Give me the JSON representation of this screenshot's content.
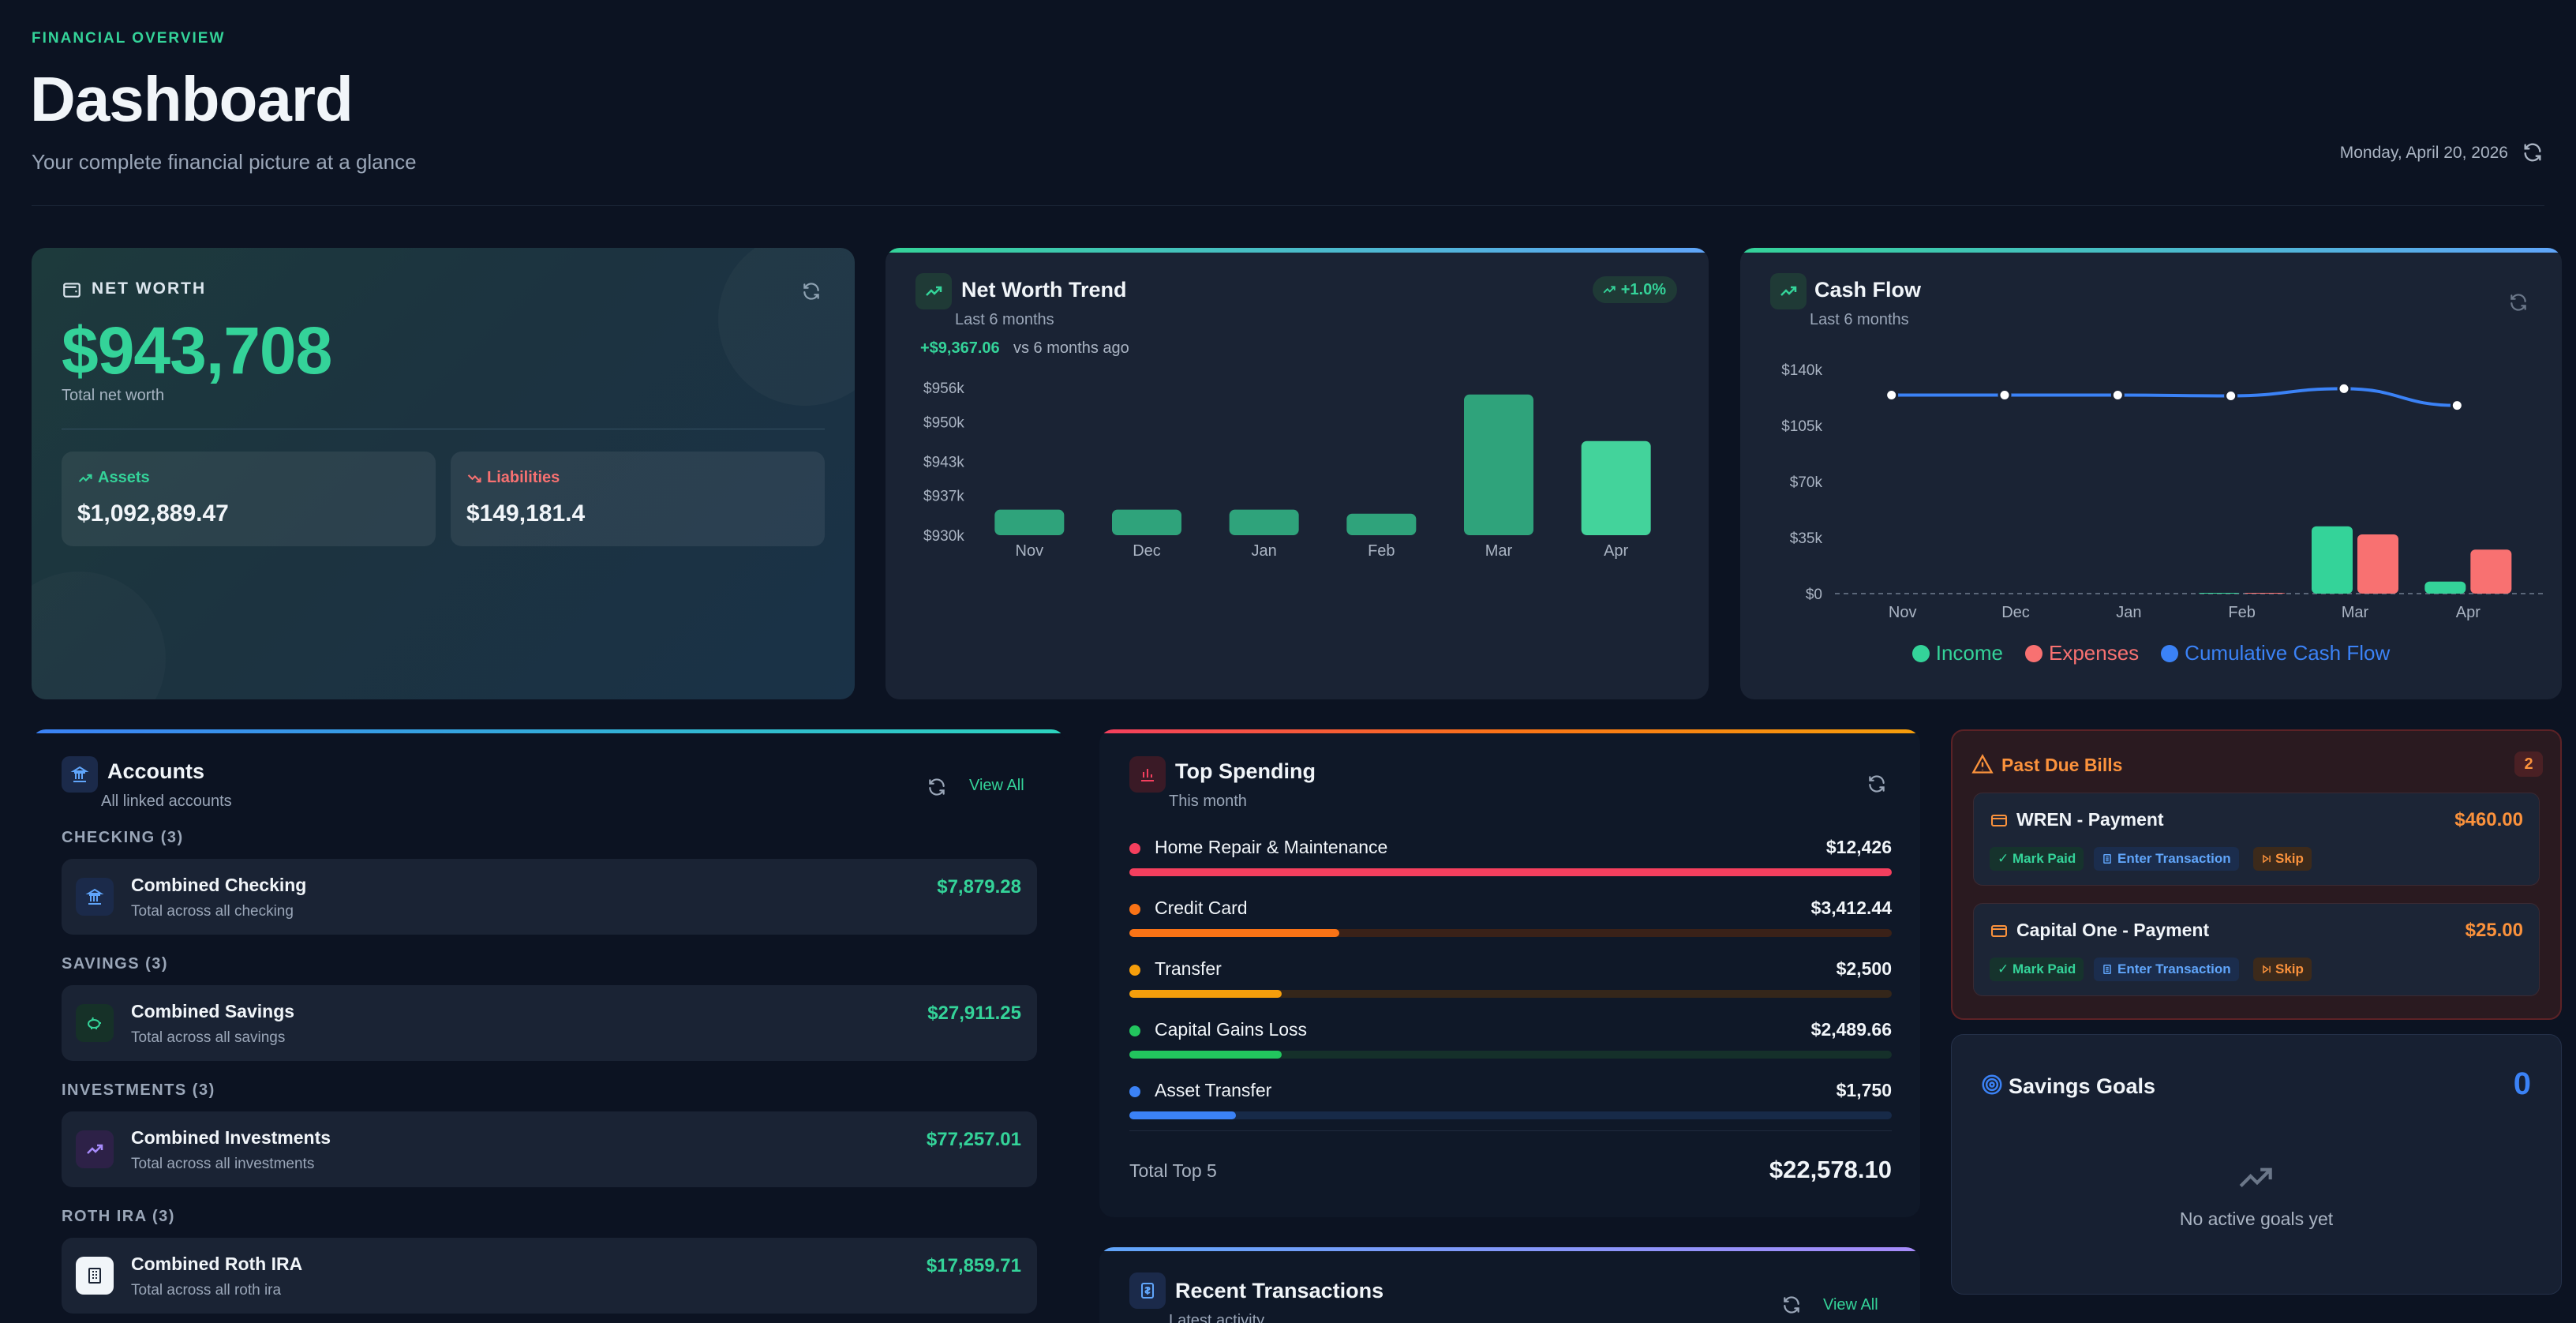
{
  "header": {
    "eyebrow": "FINANCIAL OVERVIEW",
    "title": "Dashboard",
    "subtitle": "Your complete financial picture at a glance",
    "date": "Monday, April 20, 2026"
  },
  "net_worth": {
    "label": "NET WORTH",
    "value": "$943,708",
    "caption": "Total net worth",
    "assets_label": "Assets",
    "assets_value": "$1,092,889.47",
    "liabilities_label": "Liabilities",
    "liabilities_value": "$149,181.4"
  },
  "trend": {
    "title": "Net Worth Trend",
    "subtitle": "Last 6 months",
    "badge": "+1.0%",
    "change": "+$9,367.06",
    "change_text": "vs 6 months ago"
  },
  "cashflow": {
    "title": "Cash Flow",
    "subtitle": "Last 6 months",
    "legend": [
      "Income",
      "Expenses",
      "Cumulative Cash Flow"
    ]
  },
  "chart_data": [
    {
      "type": "bar",
      "title": "Net Worth Trend",
      "categories": [
        "Nov",
        "Dec",
        "Jan",
        "Feb",
        "Mar",
        "Apr"
      ],
      "values": [
        934500,
        934500,
        934500,
        933800,
        954800,
        946600
      ],
      "ylim": [
        930000,
        957000
      ],
      "y_ticks": [
        "$956k",
        "$950k",
        "$943k",
        "$937k",
        "$930k"
      ],
      "y_tick_values": [
        956000,
        950000,
        943000,
        937000,
        930000
      ],
      "colors": [
        "#2fa37b",
        "#2fa37b",
        "#2fa37b",
        "#2fa37b",
        "#2fa37b",
        "#43d39b"
      ]
    },
    {
      "type": "bar",
      "title": "Cash Flow",
      "categories": [
        "Nov",
        "Dec",
        "Jan",
        "Feb",
        "Mar",
        "Apr"
      ],
      "series": [
        {
          "name": "Income",
          "values": [
            0,
            0,
            0,
            500,
            42000,
            7500
          ],
          "color": "#34d399"
        },
        {
          "name": "Expenses",
          "values": [
            0,
            0,
            0,
            500,
            37000,
            27500
          ],
          "color": "#f87171"
        },
        {
          "name": "Cumulative Cash Flow",
          "type": "line",
          "values": [
            124000,
            124000,
            124000,
            123500,
            128000,
            117500
          ],
          "color": "#3b82f6"
        }
      ],
      "ylim": [
        0,
        140000
      ],
      "y_ticks": [
        "$140k",
        "$105k",
        "$70k",
        "$35k",
        "$0"
      ],
      "y_tick_values": [
        140000,
        105000,
        70000,
        35000,
        0
      ],
      "legend": "bottom"
    }
  ],
  "accounts": {
    "title": "Accounts",
    "subtitle": "All linked accounts",
    "view_all": "View All",
    "groups": [
      {
        "label": "CHECKING (3)",
        "name": "Combined Checking",
        "desc": "Total across all checking",
        "amount": "$7,879.28"
      },
      {
        "label": "SAVINGS (3)",
        "name": "Combined Savings",
        "desc": "Total across all savings",
        "amount": "$27,911.25"
      },
      {
        "label": "INVESTMENTS (3)",
        "name": "Combined Investments",
        "desc": "Total across all investments",
        "amount": "$77,257.01"
      },
      {
        "label": "ROTH IRA (3)",
        "name": "Combined Roth IRA",
        "desc": "Total across all roth ira",
        "amount": "$17,859.71"
      }
    ]
  },
  "spending": {
    "title": "Top Spending",
    "subtitle": "This month",
    "items": [
      {
        "name": "Home Repair & Maintenance",
        "amount": "$12,426",
        "fraction": 1.0,
        "color": "#f43f5e",
        "track": "#3a1a26"
      },
      {
        "name": "Credit Card",
        "amount": "$3,412.44",
        "fraction": 0.275,
        "color": "#f97316",
        "track": "#3a2118"
      },
      {
        "name": "Transfer",
        "amount": "$2,500",
        "fraction": 0.2,
        "color": "#f59e0b",
        "track": "#34261a"
      },
      {
        "name": "Capital Gains Loss",
        "amount": "$2,489.66",
        "fraction": 0.2,
        "color": "#22c55e",
        "track": "#15302a"
      },
      {
        "name": "Asset Transfer",
        "amount": "$1,750",
        "fraction": 0.14,
        "color": "#3b82f6",
        "track": "#172a48"
      }
    ],
    "total_label": "Total Top 5",
    "total_value": "$22,578.10"
  },
  "recent": {
    "title": "Recent Transactions",
    "subtitle": "Latest activity",
    "view_all": "View All"
  },
  "past_due": {
    "title": "Past Due Bills",
    "count": "2",
    "bills": [
      {
        "name": "WREN - Payment",
        "amount": "$460.00"
      },
      {
        "name": "Capital One - Payment",
        "amount": "$25.00"
      }
    ],
    "mark_paid": "✓ Mark Paid",
    "enter_transaction": "Enter Transaction",
    "skip": "Skip"
  },
  "goals": {
    "title": "Savings Goals",
    "count": "0",
    "empty": "No active goals yet"
  }
}
